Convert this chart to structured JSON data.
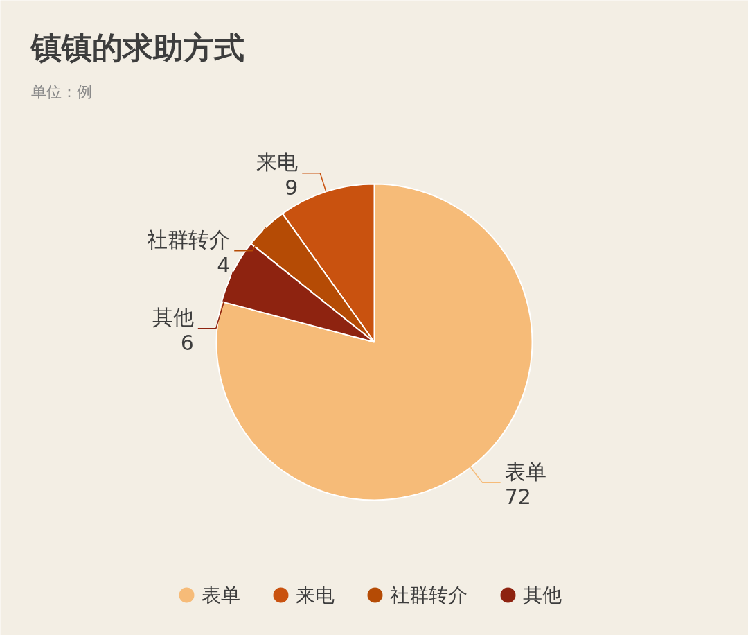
{
  "chart_data": {
    "type": "pie",
    "title": "镇镇的求助方式",
    "subtitle": "单位：例",
    "categories": [
      "表单",
      "来电",
      "社群转介",
      "其他"
    ],
    "values": [
      72,
      9,
      4,
      6
    ],
    "colors": [
      "#f6bb78",
      "#c9520f",
      "#b54b05",
      "#8e2310"
    ],
    "data_labels": true,
    "legend": "bottom"
  }
}
